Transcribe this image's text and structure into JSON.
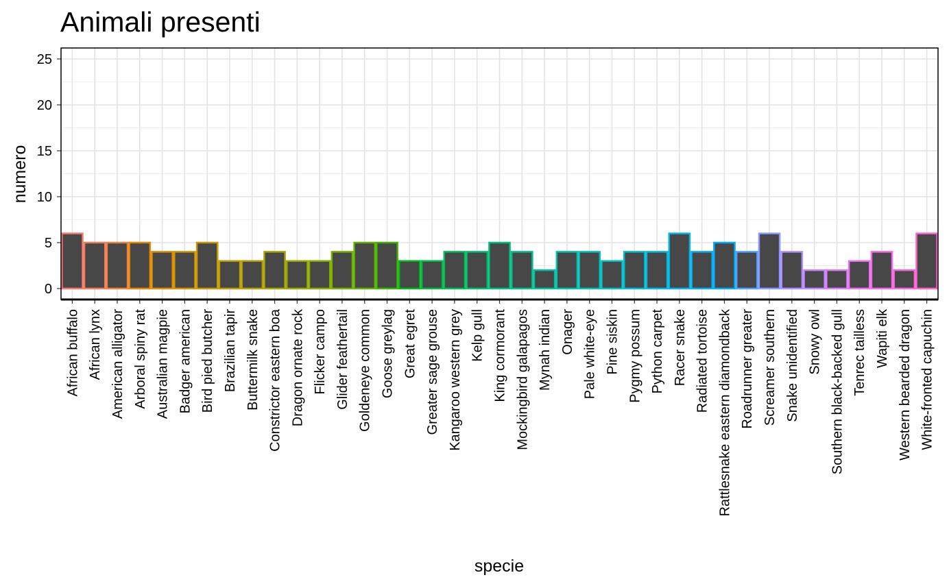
{
  "chart_data": {
    "type": "bar",
    "title": "Animali presenti",
    "xlabel": "specie",
    "ylabel": "numero",
    "ylim": [
      0,
      26
    ],
    "yticks": [
      0,
      5,
      10,
      15,
      20,
      25
    ],
    "grid": true,
    "bar_fill": "#474747",
    "categories": [
      "African buffalo",
      "African lynx",
      "American alligator",
      "Arboral spiny rat",
      "Australian magpie",
      "Badger american",
      "Bird pied butcher",
      "Brazilian tapir",
      "Buttermilk snake",
      "Constrictor eastern boa",
      "Dragon ornate rock",
      "Flicker campo",
      "Glider feathertail",
      "Goldeneye common",
      "Goose greylag",
      "Great egret",
      "Greater sage grouse",
      "Kangaroo western grey",
      "Kelp gull",
      "King cormorant",
      "Mockingbird galapagos",
      "Mynah indian",
      "Onager",
      "Pale white-eye",
      "Pine siskin",
      "Pygmy possum",
      "Python carpet",
      "Racer snake",
      "Radiated tortoise",
      "Rattlesnake eastern diamondback",
      "Roadrunner greater",
      "Screamer southern",
      "Snake unidentified",
      "Snowy owl",
      "Southern black-backed gull",
      "Tenrec tailless",
      "Wapiti elk",
      "Western bearded dragon",
      "White-fronted capuchin"
    ],
    "values": [
      6,
      5,
      5,
      5,
      4,
      4,
      5,
      3,
      3,
      4,
      3,
      3,
      4,
      5,
      5,
      3,
      3,
      4,
      4,
      5,
      4,
      2,
      4,
      4,
      3,
      4,
      4,
      6,
      4,
      5,
      4,
      6,
      4,
      2,
      2,
      3,
      4,
      2,
      6
    ],
    "outline_colors": [
      "#F8766D",
      "#F37B59",
      "#ED8141",
      "#E58700",
      "#DC8D00",
      "#D39200",
      "#C99800",
      "#BE9C00",
      "#B3A000",
      "#A6A400",
      "#98A800",
      "#88AB00",
      "#76AF00",
      "#5FB200",
      "#3DB500",
      "#00B81E",
      "#00BA43",
      "#00BC59",
      "#00BE6C",
      "#00BF7D",
      "#00C08E",
      "#00C19D",
      "#00C1AB",
      "#00C0B9",
      "#00BEC6",
      "#00BCD3",
      "#00B9DF",
      "#00B5EA",
      "#00B0F4",
      "#00AAFD",
      "#4DA1FF",
      "#8B98FF",
      "#AE8EFF",
      "#C784FF",
      "#DA7BF8",
      "#E872F0",
      "#F36AE6",
      "#FA65DA",
      "#FF61CC"
    ]
  }
}
